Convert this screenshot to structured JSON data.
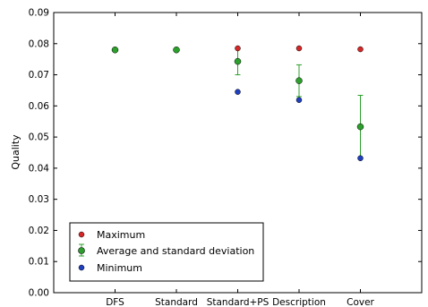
{
  "chart_data": {
    "type": "scatter",
    "title": "",
    "xlabel": "",
    "ylabel": "Quality",
    "ylim": [
      0,
      0.09
    ],
    "yticks": [
      "0.00",
      "0.01",
      "0.02",
      "0.03",
      "0.04",
      "0.05",
      "0.06",
      "0.07",
      "0.08",
      "0.09"
    ],
    "categories": [
      "DFS",
      "Standard",
      "Standard+PS",
      "Description",
      "Cover"
    ],
    "grid": false,
    "legend_position": "lower-left",
    "series": [
      {
        "name": "Maximum",
        "color": "#d62728",
        "values": [
          0.078,
          0.078,
          0.0785,
          0.0785,
          0.0782
        ]
      },
      {
        "name": "Average and standard deviation",
        "color": "#2ca02c",
        "values": [
          0.078,
          0.078,
          0.0743,
          0.0681,
          0.0533
        ],
        "std": [
          0,
          0,
          0.0043,
          0.0051,
          0.0101
        ]
      },
      {
        "name": "Minimum",
        "color": "#1f3fbf",
        "values": [
          0.078,
          0.078,
          0.0645,
          0.0619,
          0.0432
        ]
      }
    ]
  }
}
